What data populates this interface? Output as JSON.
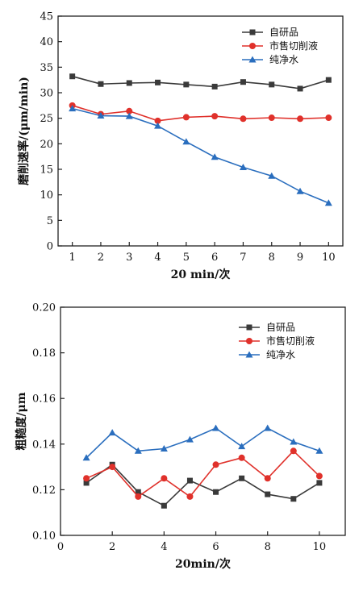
{
  "chart_data": [
    {
      "type": "line",
      "x": [
        1,
        2,
        3,
        4,
        5,
        6,
        7,
        8,
        9,
        10
      ],
      "xlabel": "20 min/次",
      "ylabel": "磨削速率/(μm/min)",
      "xlim": [
        0.5,
        10.5
      ],
      "ylim": [
        0,
        45
      ],
      "xticks": [
        1,
        2,
        3,
        4,
        5,
        6,
        7,
        8,
        9,
        10
      ],
      "yticks": [
        0,
        5,
        10,
        15,
        20,
        25,
        30,
        35,
        40,
        45
      ],
      "legend": "top-right",
      "series": [
        {
          "name": "自研品",
          "color": "#3a3a3a",
          "marker": "square",
          "values": [
            33.2,
            31.7,
            31.9,
            32.0,
            31.6,
            31.2,
            32.1,
            31.6,
            30.8,
            32.5
          ]
        },
        {
          "name": "市售切削液",
          "color": "#e0312b",
          "marker": "circle",
          "values": [
            27.5,
            25.8,
            26.4,
            24.5,
            25.2,
            25.4,
            24.9,
            25.1,
            24.9,
            25.1
          ]
        },
        {
          "name": "纯净水",
          "color": "#2a6ebe",
          "marker": "triangle",
          "values": [
            26.9,
            25.5,
            25.4,
            23.5,
            20.4,
            17.4,
            15.4,
            13.7,
            10.7,
            8.4
          ]
        }
      ]
    },
    {
      "type": "line",
      "x": [
        1,
        2,
        3,
        4,
        5,
        6,
        7,
        8,
        9,
        10
      ],
      "xlabel": "20min/次",
      "ylabel": "粗糙度/μm",
      "xlim": [
        0,
        11
      ],
      "ylim": [
        0.1,
        0.2
      ],
      "xticks": [
        0,
        2,
        4,
        6,
        8,
        10
      ],
      "yticks": [
        0.1,
        0.12,
        0.14,
        0.16,
        0.18,
        0.2
      ],
      "legend": "top-right",
      "series": [
        {
          "name": "自研品",
          "color": "#3a3a3a",
          "marker": "square",
          "values": [
            0.123,
            0.131,
            0.119,
            0.113,
            0.124,
            0.119,
            0.125,
            0.118,
            0.116,
            0.123
          ]
        },
        {
          "name": "市售切削液",
          "color": "#e0312b",
          "marker": "circle",
          "values": [
            0.125,
            0.13,
            0.117,
            0.125,
            0.117,
            0.131,
            0.134,
            0.125,
            0.137,
            0.126
          ]
        },
        {
          "name": "纯净水",
          "color": "#2a6ebe",
          "marker": "triangle",
          "values": [
            0.134,
            0.145,
            0.137,
            0.138,
            0.142,
            0.147,
            0.139,
            0.147,
            0.141,
            0.137
          ]
        }
      ]
    }
  ]
}
